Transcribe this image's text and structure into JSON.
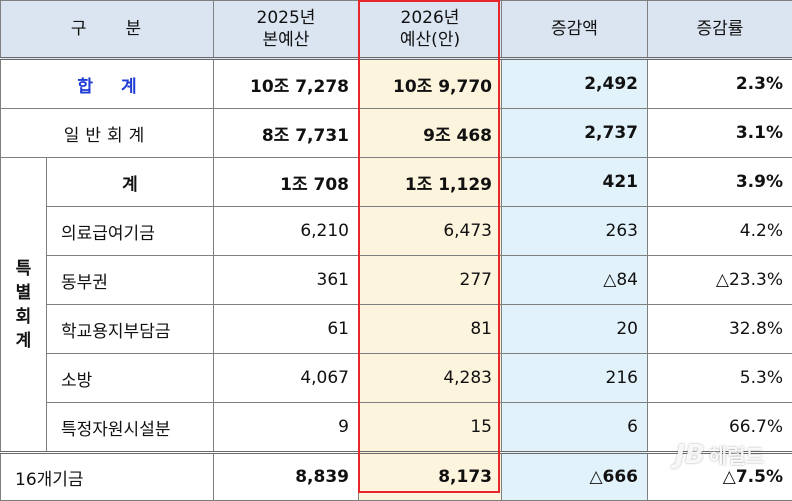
{
  "header": {
    "category": "구     분",
    "col_2025_line1": "2025년",
    "col_2025_line2": "본예산",
    "col_2026_line1": "2026년",
    "col_2026_line2": "예산(안)",
    "col_increase": "증감액",
    "col_rate": "증감률"
  },
  "rows": {
    "total": {
      "label": "합계",
      "v2025": "10조 7,278",
      "v2026": "10조 9,770",
      "increase": "2,492",
      "rate": "2.3%"
    },
    "general": {
      "label": "일반회계",
      "v2025": "8조 7,731",
      "v2026": "9조 468",
      "increase": "2,737",
      "rate": "3.1%"
    },
    "special_label": "특별회계",
    "special_subtotal": {
      "label": "계",
      "v2025": "1조 708",
      "v2026": "1조 1,129",
      "increase": "421",
      "rate": "3.9%"
    },
    "medical": {
      "label": "의료급여기금",
      "v2025": "6,210",
      "v2026": "6,473",
      "increase": "263",
      "rate": "4.2%"
    },
    "district": {
      "label": "동부권",
      "v2025": "361",
      "v2026": "277",
      "increase": "△84",
      "rate": "△23.3%"
    },
    "school": {
      "label": "학교용지부담금",
      "v2025": "61",
      "v2026": "81",
      "increase": "20",
      "rate": "32.8%"
    },
    "fire": {
      "label": "소방",
      "v2025": "4,067",
      "v2026": "4,283",
      "increase": "216",
      "rate": "5.3%"
    },
    "facility": {
      "label": "특정자원시설분",
      "v2025": "9",
      "v2026": "15",
      "increase": "6",
      "rate": "66.7%"
    },
    "funds": {
      "label": "16개기금",
      "v2025": "8,839",
      "v2026": "8,173",
      "increase": "△666",
      "rate": "△7.5%"
    }
  },
  "watermark": {
    "brand": "JB",
    "name": "헤럴드"
  },
  "colors": {
    "header_bg": "#dbe5f1",
    "proposal_bg": "#fdf4dd",
    "increase_bg": "#e2f2fb",
    "highlight_border": "#e8262a",
    "total_label": "#1f3bd6"
  }
}
